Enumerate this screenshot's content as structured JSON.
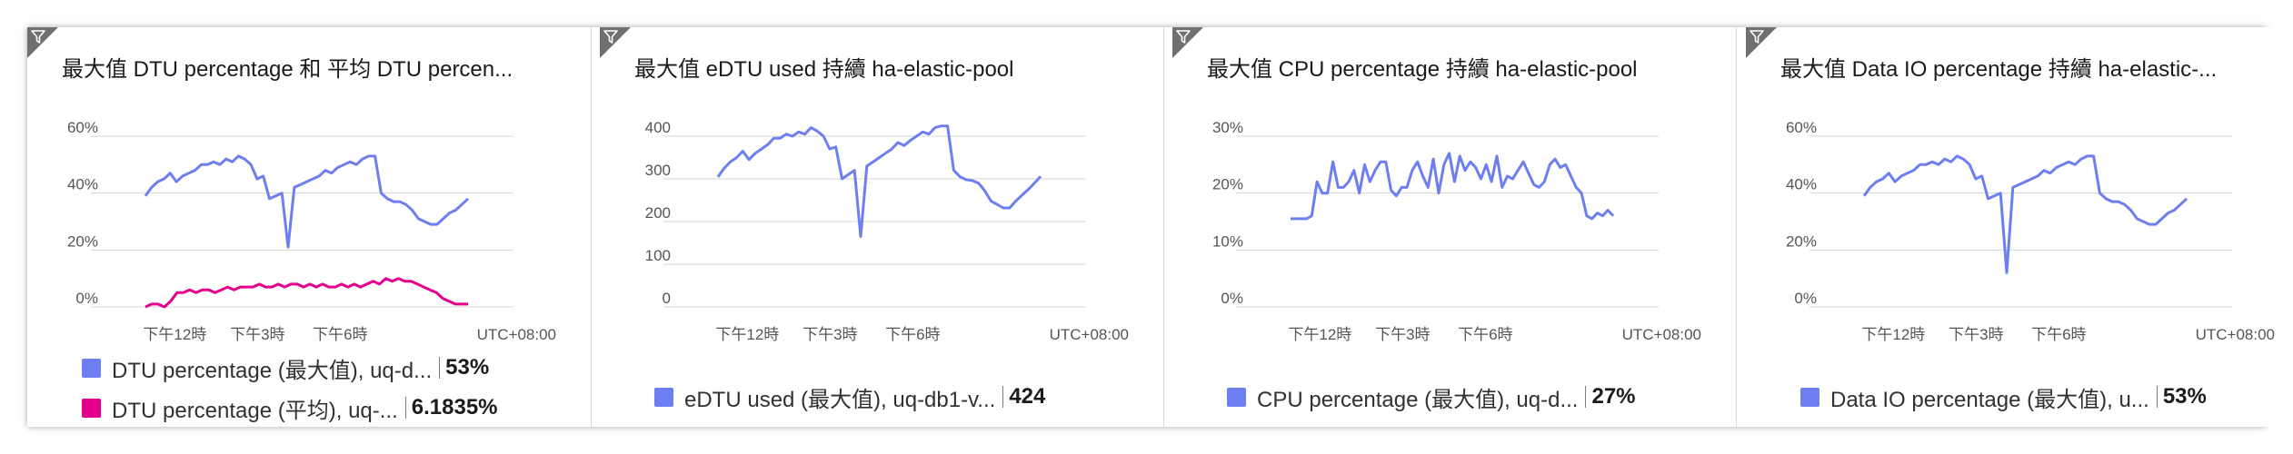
{
  "tiles": [
    {
      "title": "最大值 DTU percentage 和 平均 DTU percen...",
      "legend": [
        {
          "label": "DTU percentage (最大值), uq-d...",
          "value": "53%",
          "color": "#6d7ff0"
        },
        {
          "label": "DTU percentage (平均), uq-...",
          "value": "6.1835%",
          "color": "#e3008c"
        }
      ],
      "chart_data": {
        "type": "line",
        "y_ticks": [
          "60%",
          "40%",
          "20%",
          "0%"
        ],
        "ylim": [
          0,
          60
        ],
        "x_ticks": [
          "下午12時",
          "下午3時",
          "下午6時"
        ],
        "x_unit_label": "UTC+08:00",
        "series": [
          {
            "color": "#6d7ff0",
            "values": [
              39,
              42,
              44,
              45,
              47,
              44,
              46,
              47,
              48,
              50,
              50,
              51,
              50,
              52,
              51,
              53,
              52,
              50,
              45,
              46,
              38,
              39,
              40,
              21,
              42,
              43,
              44,
              45,
              46,
              48,
              47,
              49,
              50,
              51,
              50,
              52,
              53,
              53,
              40,
              38,
              37,
              37,
              36,
              34,
              31,
              30,
              29,
              29,
              31,
              33,
              34,
              36,
              38
            ]
          },
          {
            "color": "#e3008c",
            "values": [
              0,
              1,
              1,
              0,
              2,
              5,
              5,
              6,
              5,
              6,
              6,
              5,
              6,
              7,
              6,
              7,
              7,
              7,
              8,
              7,
              7,
              8,
              7,
              8,
              8,
              7,
              8,
              7,
              8,
              7,
              7,
              8,
              7,
              8,
              7,
              8,
              9,
              8,
              10,
              9,
              10,
              9,
              9,
              8,
              7,
              6,
              5,
              3,
              2,
              1,
              1,
              1
            ]
          }
        ]
      }
    },
    {
      "title": "最大值 eDTU used 持續 ha-elastic-pool",
      "legend": [
        {
          "label": "eDTU used (最大值), uq-db1-v...",
          "value": "424",
          "color": "#6d7ff0"
        }
      ],
      "chart_data": {
        "type": "line",
        "y_ticks": [
          "400",
          "300",
          "200",
          "100",
          "0"
        ],
        "ylim": [
          0,
          400
        ],
        "x_ticks": [
          "下午12時",
          "下午3時",
          "下午6時"
        ],
        "x_unit_label": "UTC+08:00",
        "series": [
          {
            "color": "#6d7ff0",
            "values": [
              305,
              325,
              340,
              350,
              365,
              345,
              360,
              370,
              380,
              395,
              395,
              405,
              400,
              410,
              405,
              420,
              412,
              400,
              370,
              375,
              300,
              310,
              320,
              165,
              330,
              340,
              350,
              360,
              370,
              385,
              378,
              390,
              400,
              410,
              405,
              420,
              424,
              424,
              320,
              305,
              298,
              296,
              290,
              272,
              248,
              240,
              232,
              232,
              248,
              262,
              275,
              290,
              306
            ]
          }
        ]
      }
    },
    {
      "title": "最大值 CPU percentage 持續 ha-elastic-pool",
      "legend": [
        {
          "label": "CPU percentage (最大值), uq-d...",
          "value": "27%",
          "color": "#6d7ff0"
        }
      ],
      "chart_data": {
        "type": "line",
        "y_ticks": [
          "30%",
          "20%",
          "10%",
          "0%"
        ],
        "ylim": [
          0,
          30
        ],
        "x_ticks": [
          "下午12時",
          "下午3時",
          "下午6時"
        ],
        "x_unit_label": "UTC+08:00",
        "series": [
          {
            "color": "#6d7ff0",
            "values": [
              15.5,
              15.5,
              15.5,
              15.5,
              16,
              22,
              20,
              20,
              25.5,
              21,
              21,
              22,
              24,
              20,
              25,
              22,
              24,
              25.5,
              25.5,
              20.5,
              19.5,
              21,
              21,
              24,
              25.5,
              23,
              21,
              26,
              20,
              25,
              27,
              22,
              26.5,
              24,
              25.5,
              24.5,
              22.5,
              25,
              22,
              26.5,
              21,
              23,
              22.5,
              24,
              25.5,
              23.5,
              21.5,
              21,
              22,
              25,
              26,
              24.5,
              25,
              23,
              21,
              20,
              16,
              15.5,
              16.5,
              16,
              17,
              16
            ]
          }
        ]
      }
    },
    {
      "title": "最大值 Data IO percentage 持續 ha-elastic-...",
      "legend": [
        {
          "label": "Data IO percentage (最大值), u...",
          "value": "53%",
          "color": "#6d7ff0"
        }
      ],
      "chart_data": {
        "type": "line",
        "y_ticks": [
          "60%",
          "40%",
          "20%",
          "0%"
        ],
        "ylim": [
          0,
          60
        ],
        "x_ticks": [
          "下午12時",
          "下午3時",
          "下午6時"
        ],
        "x_unit_label": "UTC+08:00",
        "series": [
          {
            "color": "#6d7ff0",
            "values": [
              39,
              42,
              44,
              45,
              47,
              44,
              46,
              47,
              48,
              50,
              50,
              51,
              50,
              52,
              51,
              53,
              52,
              50,
              45,
              46,
              38,
              39,
              40,
              12,
              42,
              43,
              44,
              45,
              46,
              48,
              47,
              49,
              50,
              51,
              50,
              52,
              53,
              53,
              40,
              38,
              37,
              37,
              36,
              34,
              31,
              30,
              29,
              29,
              31,
              33,
              34,
              36,
              38
            ]
          }
        ]
      }
    }
  ]
}
